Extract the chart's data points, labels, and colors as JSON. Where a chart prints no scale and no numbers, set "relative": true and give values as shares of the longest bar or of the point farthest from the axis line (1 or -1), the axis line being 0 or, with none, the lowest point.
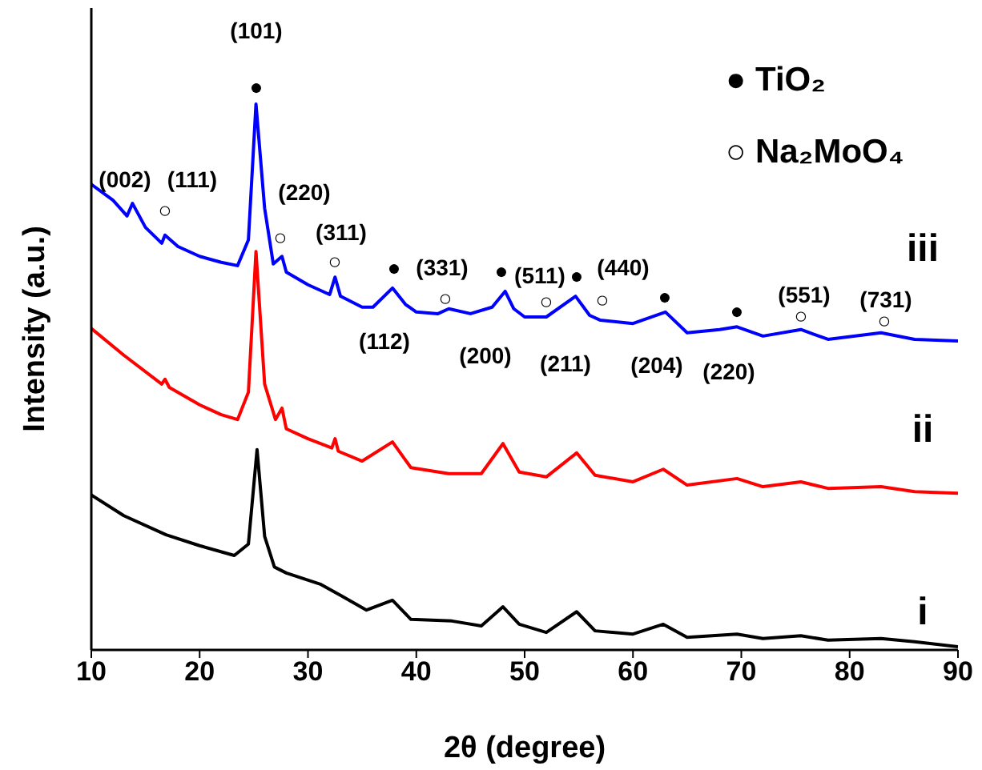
{
  "chart_data": {
    "type": "line",
    "xlabel": "2θ (degree)",
    "ylabel": "Intensity (a.u.)",
    "relative": true,
    "xlim": [
      10,
      90
    ],
    "xticks": [
      10,
      20,
      30,
      40,
      50,
      60,
      70,
      80,
      90
    ],
    "marker": "none",
    "line_style": "solid",
    "series": [
      {
        "name": "i",
        "color": "#000000",
        "x": [
          10,
          13,
          16.9,
          20,
          23.2,
          24.5,
          25.3,
          26,
          26.9,
          28,
          31.2,
          33,
          35.4,
          37.8,
          39.5,
          43.3,
          46,
          48,
          49.5,
          52,
          54.8,
          56.5,
          60,
          62.8,
          65,
          69.6,
          72,
          75.5,
          78,
          82.9,
          86,
          90
        ],
        "values": [
          0.284,
          0.246,
          0.211,
          0.191,
          0.173,
          0.194,
          0.367,
          0.208,
          0.152,
          0.141,
          0.12,
          0.1,
          0.073,
          0.091,
          0.056,
          0.053,
          0.044,
          0.079,
          0.047,
          0.032,
          0.07,
          0.035,
          0.029,
          0.047,
          0.023,
          0.029,
          0.021,
          0.026,
          0.018,
          0.021,
          0.015,
          0.006
        ]
      },
      {
        "name": "ii",
        "color": "#ff0000",
        "x": [
          10,
          13,
          16.5,
          16.8,
          17.2,
          20,
          22,
          23.5,
          24.5,
          25.2,
          26,
          27,
          27.6,
          28,
          30,
          32.2,
          32.5,
          32.8,
          35,
          37.8,
          39.5,
          43,
          46,
          48,
          49.5,
          52,
          54.8,
          56.5,
          60,
          62.8,
          65,
          69.6,
          72,
          75.5,
          78,
          82.9,
          86,
          90
        ],
        "values": [
          0.589,
          0.54,
          0.487,
          0.496,
          0.481,
          0.449,
          0.431,
          0.422,
          0.472,
          0.73,
          0.487,
          0.422,
          0.443,
          0.405,
          0.387,
          0.37,
          0.387,
          0.364,
          0.346,
          0.381,
          0.334,
          0.323,
          0.323,
          0.378,
          0.326,
          0.317,
          0.361,
          0.32,
          0.308,
          0.331,
          0.302,
          0.314,
          0.299,
          0.308,
          0.296,
          0.299,
          0.29,
          0.287
        ]
      },
      {
        "name": "iii",
        "color": "#0000ff",
        "x": [
          10,
          12,
          13.3,
          13.8,
          15,
          16.5,
          16.8,
          18,
          20,
          22,
          23.5,
          24.5,
          25.2,
          26,
          26.8,
          27.6,
          28,
          30,
          32,
          32.5,
          33,
          35,
          36,
          37.8,
          39,
          40,
          42,
          43,
          45,
          47,
          48.2,
          49,
          50,
          52,
          54.7,
          56,
          57,
          60,
          63,
          65,
          68,
          69.6,
          72,
          75.5,
          78,
          82.9,
          86,
          90
        ],
        "values": [
          0.853,
          0.824,
          0.795,
          0.818,
          0.774,
          0.745,
          0.76,
          0.739,
          0.721,
          0.71,
          0.704,
          0.751,
          1.0,
          0.809,
          0.707,
          0.721,
          0.692,
          0.669,
          0.651,
          0.683,
          0.648,
          0.628,
          0.628,
          0.663,
          0.633,
          0.619,
          0.616,
          0.625,
          0.616,
          0.628,
          0.657,
          0.625,
          0.61,
          0.61,
          0.648,
          0.613,
          0.604,
          0.598,
          0.619,
          0.581,
          0.587,
          0.592,
          0.575,
          0.587,
          0.569,
          0.581,
          0.569,
          0.566
        ]
      }
    ],
    "annotations": [
      "(101)",
      "●",
      "(002)",
      "(111)",
      "○",
      "(220)",
      "○",
      "(311)",
      "○",
      "●",
      "(331)",
      "○",
      "(112)",
      "●",
      "(200)",
      "(511)",
      "○",
      "●",
      "(440)",
      "○",
      "(211)",
      "●",
      "(204)",
      "(220)",
      "●",
      "(551)",
      "○",
      "(731)",
      "○",
      "●  TiO₂",
      "○  Na₂MoO₄"
    ]
  }
}
